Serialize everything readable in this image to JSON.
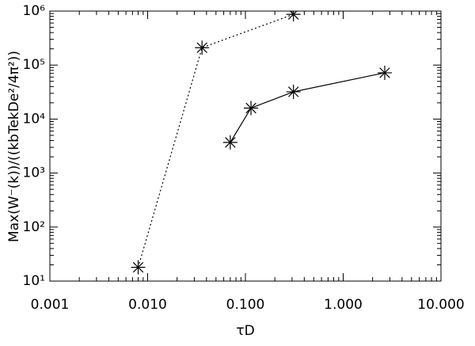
{
  "chart_data": {
    "type": "line",
    "x_label": "τD",
    "y_label": "Max(W⁻(k))/((kbTekDe²/4π²))",
    "xlog": true,
    "ylog": true,
    "xlim": [
      0.001,
      10
    ],
    "ylim": [
      10,
      1000000
    ],
    "xticks": [
      0.001,
      {
        "value": 0.01,
        "label": "0.010"
      },
      {
        "value": 0.1,
        "label": "0.100"
      },
      {
        "value": 1,
        "label": "1.000"
      },
      {
        "value": 10,
        "label": "10.000"
      }
    ],
    "yticks": [
      {
        "value": 10,
        "label": "10¹"
      },
      {
        "value": 100,
        "label": "10²"
      },
      {
        "value": 1000,
        "label": "10³"
      },
      {
        "value": 10000,
        "label": "10⁴"
      },
      {
        "value": 100000,
        "label": "10⁵"
      },
      {
        "value": 1000000,
        "label": "10⁶"
      }
    ],
    "series": [
      {
        "name": null,
        "color": "#000000",
        "dash": "dotted",
        "x": [
          0.008,
          0.036,
          0.31
        ],
        "values": [
          18,
          210000,
          870000
        ]
      },
      {
        "name": null,
        "color": "#000000",
        "dash": "solid",
        "x": [
          0.07,
          0.114,
          0.31,
          2.66
        ],
        "values": [
          3700,
          16000,
          32000,
          72000
        ]
      }
    ]
  }
}
